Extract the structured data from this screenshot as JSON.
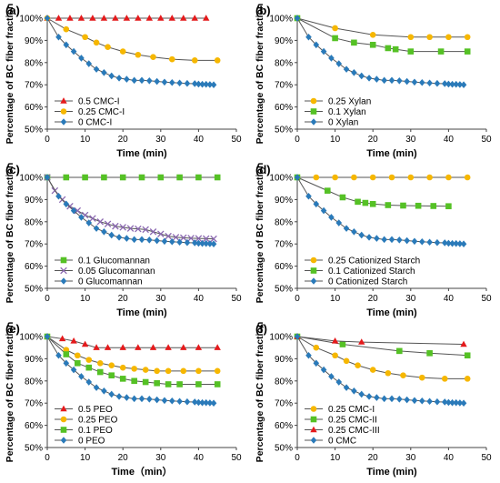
{
  "figure": {
    "colors": {
      "red": "#e41a1c",
      "orange": "#f6b700",
      "green": "#55c125",
      "blue": "#2a7ab9",
      "purple": "#8a67b0"
    }
  },
  "chart_data": [
    {
      "type": "line",
      "panel": "(a)",
      "xlabel": "Time (min)",
      "ylabel": "Percentage of BC fiber fraction",
      "xlim": [
        0,
        50
      ],
      "ylim": [
        50,
        100
      ],
      "xticks": [
        0,
        10,
        20,
        30,
        40,
        50
      ],
      "yticks": [
        "50%",
        "60%",
        "70%",
        "80%",
        "90%",
        "100%"
      ],
      "legend_position": "bottom-left",
      "series": [
        {
          "name": "0.5 CMC-I",
          "color": "#e41a1c",
          "marker": "triangle",
          "x": [
            0,
            3,
            6,
            9,
            12,
            15,
            18,
            21,
            24,
            27,
            30,
            33,
            36,
            39,
            42
          ],
          "y": [
            100,
            100,
            100,
            100,
            100,
            100,
            100,
            100,
            100,
            100,
            100,
            100,
            100,
            100,
            100
          ]
        },
        {
          "name": "0.25 CMC-I",
          "color": "#f6b700",
          "marker": "circle",
          "x": [
            0,
            5,
            10,
            13,
            16,
            20,
            24,
            28,
            33,
            39,
            45
          ],
          "y": [
            100,
            95,
            91.5,
            89,
            87,
            85,
            83.5,
            82.5,
            81.5,
            81,
            81
          ]
        },
        {
          "name": "0 CMC-I",
          "color": "#2a7ab9",
          "marker": "diamond",
          "x": [
            0,
            3,
            5,
            7,
            9,
            11,
            13,
            15,
            17,
            19,
            21,
            23,
            25,
            27,
            29,
            31,
            33,
            35,
            37,
            39,
            40,
            41,
            42,
            43,
            44
          ],
          "y": [
            100,
            91.5,
            88,
            85,
            82,
            79.5,
            77,
            75.5,
            74,
            73,
            72.5,
            72,
            72,
            71.8,
            71.5,
            71.2,
            71,
            70.8,
            70.6,
            70.5,
            70.3,
            70.2,
            70.2,
            70.1,
            70
          ]
        }
      ]
    },
    {
      "type": "line",
      "panel": "(b)",
      "xlabel": "Time (min)",
      "ylabel": "Percentage of BC fiber fraction",
      "xlim": [
        0,
        50
      ],
      "ylim": [
        50,
        100
      ],
      "xticks": [
        0,
        10,
        20,
        30,
        40,
        50
      ],
      "yticks": [
        "50%",
        "60%",
        "70%",
        "80%",
        "90%",
        "100%"
      ],
      "legend_position": "bottom-left",
      "series": [
        {
          "name": "0.25 Xylan",
          "color": "#f6b700",
          "marker": "circle",
          "x": [
            0,
            10,
            20,
            30,
            35,
            40,
            45
          ],
          "y": [
            100,
            95.5,
            92.5,
            91.5,
            91.5,
            91.5,
            91.5
          ]
        },
        {
          "name": "0.1 Xylan",
          "color": "#55c125",
          "marker": "square",
          "x": [
            0,
            10,
            15,
            20,
            24,
            26,
            30,
            38,
            45
          ],
          "y": [
            100,
            91,
            89,
            88,
            86.5,
            86,
            85,
            85,
            85
          ]
        },
        {
          "name": "0 Xylan",
          "color": "#2a7ab9",
          "marker": "diamond",
          "x": [
            0,
            3,
            5,
            7,
            9,
            11,
            13,
            15,
            17,
            19,
            21,
            23,
            25,
            27,
            29,
            31,
            33,
            35,
            37,
            39,
            40,
            41,
            42,
            43,
            44
          ],
          "y": [
            100,
            91.5,
            88,
            85,
            82,
            79.5,
            77,
            75.5,
            74,
            73,
            72.5,
            72,
            72,
            71.8,
            71.5,
            71.2,
            71,
            70.8,
            70.6,
            70.5,
            70.3,
            70.2,
            70.2,
            70.1,
            70
          ]
        }
      ]
    },
    {
      "type": "line",
      "panel": "(c)",
      "xlabel": "Time (min)",
      "ylabel": "Percentage of BC fiber fraction",
      "xlim": [
        0,
        50
      ],
      "ylim": [
        50,
        100
      ],
      "xticks": [
        0,
        10,
        20,
        30,
        40,
        50
      ],
      "yticks": [
        "50%",
        "60%",
        "70%",
        "80%",
        "90%",
        "100%"
      ],
      "legend_position": "bottom-left",
      "series": [
        {
          "name": "0.1 Glucomannan",
          "color": "#55c125",
          "marker": "square",
          "x": [
            0,
            5,
            10,
            15,
            20,
            25,
            30,
            35,
            40,
            45
          ],
          "y": [
            100,
            100,
            100,
            100,
            100,
            100,
            100,
            100,
            100,
            100
          ]
        },
        {
          "name": "0.05 Glucomannan",
          "color": "#8a67b0",
          "marker": "x",
          "x": [
            0,
            2,
            4,
            6,
            8,
            10,
            12,
            14,
            16,
            18,
            20,
            22,
            24,
            26,
            28,
            30,
            32,
            34,
            36,
            38,
            40,
            42,
            44
          ],
          "y": [
            100,
            94,
            90,
            87,
            85,
            83,
            81.5,
            80,
            79,
            78,
            77.5,
            77,
            76.8,
            76.5,
            75.5,
            74.5,
            73.5,
            73,
            72.8,
            72.6,
            72.5,
            72.4,
            72.3
          ]
        },
        {
          "name": "0 Glucomannan",
          "color": "#2a7ab9",
          "marker": "diamond",
          "x": [
            0,
            3,
            5,
            7,
            9,
            11,
            13,
            15,
            17,
            19,
            21,
            23,
            25,
            27,
            29,
            31,
            33,
            35,
            37,
            39,
            40,
            41,
            42,
            43,
            44
          ],
          "y": [
            100,
            91.5,
            88,
            85,
            82,
            79.5,
            77,
            75.5,
            74,
            73,
            72.5,
            72,
            72,
            71.8,
            71.5,
            71.2,
            71,
            70.8,
            70.6,
            70.5,
            70.3,
            70.2,
            70.2,
            70.1,
            70
          ]
        }
      ]
    },
    {
      "type": "line",
      "panel": "(d)",
      "xlabel": "Time (min)",
      "ylabel": "Percentage of BC fiber fraction",
      "xlim": [
        0,
        50
      ],
      "ylim": [
        50,
        100
      ],
      "xticks": [
        0,
        10,
        20,
        30,
        40,
        50
      ],
      "yticks": [
        "50%",
        "60%",
        "70%",
        "80%",
        "90%",
        "100%"
      ],
      "legend_position": "bottom-left",
      "series": [
        {
          "name": "0.25 Cationized Starch",
          "color": "#f6b700",
          "marker": "circle",
          "x": [
            0,
            5,
            10,
            15,
            20,
            25,
            30,
            35,
            40,
            45
          ],
          "y": [
            100,
            100,
            100,
            100,
            100,
            100,
            100,
            100,
            100,
            100
          ]
        },
        {
          "name": "0.1 Cationized Starch",
          "color": "#55c125",
          "marker": "square",
          "x": [
            0,
            8,
            12,
            16,
            18,
            20,
            24,
            28,
            32,
            36,
            40
          ],
          "y": [
            100,
            94,
            91,
            89,
            88.5,
            88,
            87.5,
            87.3,
            87.2,
            87.1,
            87
          ]
        },
        {
          "name": "0 Cationized Starch",
          "color": "#2a7ab9",
          "marker": "diamond",
          "x": [
            0,
            3,
            5,
            7,
            9,
            11,
            13,
            15,
            17,
            19,
            21,
            23,
            25,
            27,
            29,
            31,
            33,
            35,
            37,
            39,
            40,
            41,
            42,
            43,
            44
          ],
          "y": [
            100,
            91.5,
            88,
            85,
            82,
            79.5,
            77,
            75.5,
            74,
            73,
            72.5,
            72,
            72,
            71.8,
            71.5,
            71.2,
            71,
            70.8,
            70.6,
            70.5,
            70.3,
            70.2,
            70.2,
            70.1,
            70
          ]
        }
      ]
    },
    {
      "type": "line",
      "panel": "(e)",
      "xlabel": "Time（min）",
      "ylabel": "Percentage of BC fiber fraction",
      "xlim": [
        0,
        50
      ],
      "ylim": [
        50,
        100
      ],
      "xticks": [
        0,
        10,
        20,
        30,
        40,
        50
      ],
      "yticks": [
        "50%",
        "60%",
        "70%",
        "80%",
        "90%",
        "100%"
      ],
      "legend_position": "bottom-left",
      "series": [
        {
          "name": "0.5 PEO",
          "color": "#e41a1c",
          "marker": "triangle",
          "x": [
            0,
            4,
            7,
            10,
            13,
            16,
            20,
            24,
            28,
            32,
            36,
            40,
            45
          ],
          "y": [
            100,
            99,
            98,
            96.5,
            95,
            95,
            95,
            95,
            95,
            95,
            95,
            95,
            95
          ]
        },
        {
          "name": "0.25 PEO",
          "color": "#f6b700",
          "marker": "circle",
          "x": [
            0,
            5,
            8,
            11,
            14,
            17,
            20,
            23,
            26,
            29,
            32,
            36,
            40,
            45
          ],
          "y": [
            100,
            94,
            91.5,
            89.5,
            88,
            87,
            86,
            85.5,
            85,
            84.5,
            84.5,
            84.5,
            84.5,
            84.5
          ]
        },
        {
          "name": "0.1 PEO",
          "color": "#55c125",
          "marker": "square",
          "x": [
            0,
            5,
            8,
            11,
            14,
            17,
            20,
            23,
            26,
            29,
            32,
            35,
            40,
            45
          ],
          "y": [
            100,
            92,
            88,
            86,
            84,
            82.5,
            81,
            80,
            79.5,
            79,
            78.5,
            78.5,
            78.5,
            78.5
          ]
        },
        {
          "name": "0 PEO",
          "color": "#2a7ab9",
          "marker": "diamond",
          "x": [
            0,
            3,
            5,
            7,
            9,
            11,
            13,
            15,
            17,
            19,
            21,
            23,
            25,
            27,
            29,
            31,
            33,
            35,
            37,
            39,
            40,
            41,
            42,
            43,
            44
          ],
          "y": [
            100,
            91.5,
            88,
            85,
            82,
            79.5,
            77,
            75.5,
            74,
            73,
            72.5,
            72,
            72,
            71.8,
            71.5,
            71.2,
            71,
            70.8,
            70.6,
            70.5,
            70.3,
            70.2,
            70.2,
            70.1,
            70
          ]
        }
      ]
    },
    {
      "type": "line",
      "panel": "(f)",
      "xlabel": "Time (min)",
      "ylabel": "Percentage of BC fiber fraction",
      "xlim": [
        0,
        50
      ],
      "ylim": [
        50,
        100
      ],
      "xticks": [
        0,
        10,
        20,
        30,
        40,
        50
      ],
      "yticks": [
        "50%",
        "60%",
        "70%",
        "80%",
        "90%",
        "100%"
      ],
      "legend_position": "bottom-left",
      "series": [
        {
          "name": "0.25 CMC-I",
          "color": "#f6b700",
          "marker": "circle",
          "x": [
            0,
            5,
            10,
            13,
            16,
            20,
            24,
            28,
            33,
            39,
            45
          ],
          "y": [
            100,
            95,
            91.5,
            89,
            87,
            85,
            83.5,
            82.5,
            81.5,
            81,
            81
          ]
        },
        {
          "name": "0.25 CMC-II",
          "color": "#55c125",
          "marker": "square",
          "x": [
            0,
            12,
            27,
            35,
            45
          ],
          "y": [
            100,
            96.5,
            93.5,
            92.5,
            91.5
          ]
        },
        {
          "name": "0.25 CMC-III",
          "color": "#e41a1c",
          "marker": "triangle",
          "x": [
            0,
            10,
            17,
            44
          ],
          "y": [
            100,
            98,
            97.5,
            96.5
          ]
        },
        {
          "name": "0 CMC",
          "color": "#2a7ab9",
          "marker": "diamond",
          "x": [
            0,
            3,
            5,
            7,
            9,
            11,
            13,
            15,
            17,
            19,
            21,
            23,
            25,
            27,
            29,
            31,
            33,
            35,
            37,
            39,
            40,
            41,
            42,
            43,
            44
          ],
          "y": [
            100,
            91.5,
            88,
            85,
            82,
            79.5,
            77,
            75.5,
            74,
            73,
            72.5,
            72,
            72,
            71.8,
            71.5,
            71.2,
            71,
            70.8,
            70.6,
            70.5,
            70.3,
            70.2,
            70.2,
            70.1,
            70
          ]
        }
      ]
    }
  ]
}
